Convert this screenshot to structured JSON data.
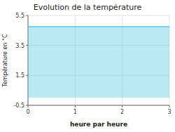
{
  "chart_data": {
    "type": "area",
    "title": "Evolution de la température",
    "xlabel": "heure par heure",
    "ylabel": "Température en °C",
    "x": [
      0,
      3
    ],
    "values": [
      4.75,
      4.75
    ],
    "color": "#55c8e0",
    "xlim": [
      0,
      3
    ],
    "ylim": [
      -0.5,
      5.5
    ],
    "xticks": [
      0,
      1,
      2,
      3
    ],
    "yticks": [
      -0.5,
      1.5,
      3.5,
      5.5
    ],
    "grid": true
  }
}
